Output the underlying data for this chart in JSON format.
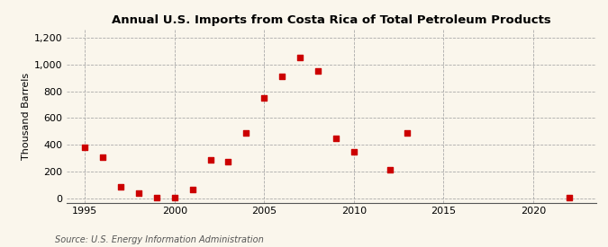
{
  "title": "Annual U.S. Imports from Costa Rica of Total Petroleum Products",
  "ylabel": "Thousand Barrels",
  "source": "Source: U.S. Energy Information Administration",
  "background_color": "#faf6ec",
  "plot_background_color": "#faf6ec",
  "marker_color": "#cc0000",
  "marker_style": "s",
  "marker_size": 4,
  "xlim": [
    1994,
    2023.5
  ],
  "ylim": [
    -30,
    1260
  ],
  "yticks": [
    0,
    200,
    400,
    600,
    800,
    1000,
    1200
  ],
  "ytick_labels": [
    "0",
    "200",
    "400",
    "600",
    "800",
    "1,000",
    "1,200"
  ],
  "xticks": [
    1995,
    2000,
    2005,
    2010,
    2015,
    2020
  ],
  "years": [
    1995,
    1996,
    1997,
    1998,
    1999,
    2000,
    2001,
    2002,
    2003,
    2004,
    2005,
    2006,
    2007,
    2008,
    2009,
    2010,
    2012,
    2013,
    2022
  ],
  "values": [
    380,
    310,
    90,
    40,
    5,
    5,
    65,
    290,
    275,
    490,
    750,
    910,
    1055,
    950,
    450,
    350,
    215,
    490,
    10
  ]
}
